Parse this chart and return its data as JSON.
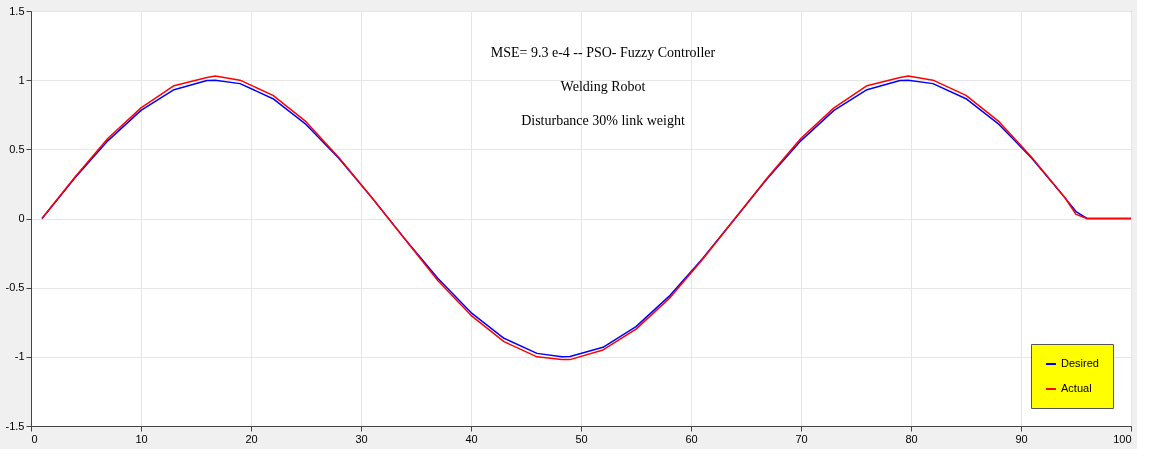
{
  "chart_data": {
    "type": "line",
    "x": [
      1,
      4,
      7,
      10,
      13,
      16,
      16.75,
      19,
      22,
      25,
      28,
      31,
      34,
      37,
      40,
      43,
      46,
      48.25,
      49,
      52,
      55,
      58,
      61,
      64,
      67,
      70,
      73,
      76,
      79,
      79.75,
      82,
      85,
      88,
      91,
      94,
      95,
      96,
      100
    ],
    "series": [
      {
        "name": "Desired",
        "color": "#0000ff",
        "values": [
          0,
          0.295,
          0.563,
          0.782,
          0.931,
          0.997,
          1,
          0.975,
          0.866,
          0.68,
          0.434,
          0.149,
          -0.149,
          -0.434,
          -0.68,
          -0.866,
          -0.975,
          -1,
          -0.997,
          -0.931,
          -0.782,
          -0.563,
          -0.295,
          0,
          0.295,
          0.563,
          0.782,
          0.931,
          0.997,
          1,
          0.975,
          0.866,
          0.68,
          0.434,
          0.149,
          0.05,
          0,
          0
        ]
      },
      {
        "name": "Actual",
        "color": "#ff0000",
        "values": [
          0,
          0.3,
          0.58,
          0.8,
          0.96,
          1.02,
          1.03,
          1.0,
          0.89,
          0.7,
          0.44,
          0.15,
          -0.15,
          -0.45,
          -0.7,
          -0.89,
          -1.0,
          -1.02,
          -1.02,
          -0.95,
          -0.8,
          -0.58,
          -0.3,
          0,
          0.3,
          0.58,
          0.8,
          0.96,
          1.02,
          1.03,
          1.0,
          0.89,
          0.7,
          0.44,
          0.15,
          0.03,
          0,
          0
        ]
      }
    ],
    "xlim": [
      0,
      100
    ],
    "xticks": [
      0,
      10,
      20,
      30,
      40,
      50,
      60,
      70,
      80,
      90,
      100
    ],
    "ylim": [
      -1.5,
      1.5
    ],
    "yticks": [
      -1.5,
      -1,
      -0.5,
      0,
      0.5,
      1,
      1.5
    ],
    "annotations": [
      "MSE= 9.3 e-4  -- PSO- Fuzzy Controller",
      "Welding Robot",
      "Disturbance 30% link weight"
    ],
    "grid": true,
    "legend": "bottom right",
    "marker": "none",
    "line_style": "solid"
  }
}
